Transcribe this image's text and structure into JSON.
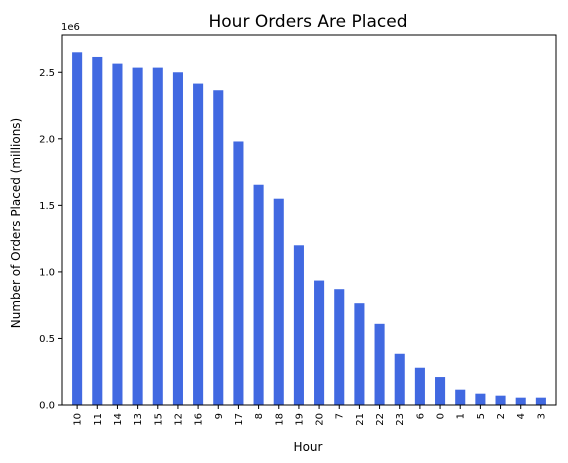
{
  "chart_data": {
    "type": "bar",
    "title": "Hour Orders Are Placed",
    "xlabel": "Hour",
    "ylabel": "Number of Orders Placed (millions)",
    "offset_label": "1e6",
    "categories": [
      "10",
      "11",
      "14",
      "13",
      "15",
      "12",
      "16",
      "9",
      "17",
      "8",
      "18",
      "19",
      "20",
      "7",
      "21",
      "22",
      "23",
      "6",
      "0",
      "1",
      "5",
      "2",
      "4",
      "3"
    ],
    "values": [
      2650000,
      2615000,
      2565000,
      2535000,
      2535000,
      2500000,
      2415000,
      2365000,
      1980000,
      1655000,
      1550000,
      1200000,
      935000,
      870000,
      765000,
      610000,
      385000,
      280000,
      210000,
      115000,
      85000,
      70000,
      55000,
      55000
    ],
    "ylim": [
      0,
      2780000
    ],
    "yticks": [
      0,
      500000,
      1000000,
      1500000,
      2000000,
      2500000
    ],
    "ytick_labels": [
      "0.0",
      "0.5",
      "1.0",
      "1.5",
      "2.0",
      "2.5"
    ],
    "grid": false,
    "bar_color": "#4169e1"
  }
}
